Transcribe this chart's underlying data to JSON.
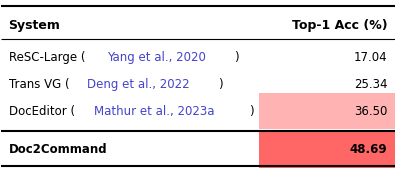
{
  "systems": [
    "ReSC-Large (Yang et al., 2020)",
    "Trans VG (Deng et al., 2022)",
    "DocEditor (Mathur et al., 2023a)",
    "Doc2Command"
  ],
  "values": [
    17.04,
    25.34,
    36.5,
    48.69
  ],
  "col_header_left": "System",
  "col_header_right": "Top-1 Acc (%)",
  "highlight_colors": [
    "none",
    "none",
    "#ffb3b3",
    "#ff6666"
  ],
  "bold_rows": [
    false,
    false,
    false,
    true
  ],
  "text_color_citation": "#4444cc",
  "bg_color": "white"
}
